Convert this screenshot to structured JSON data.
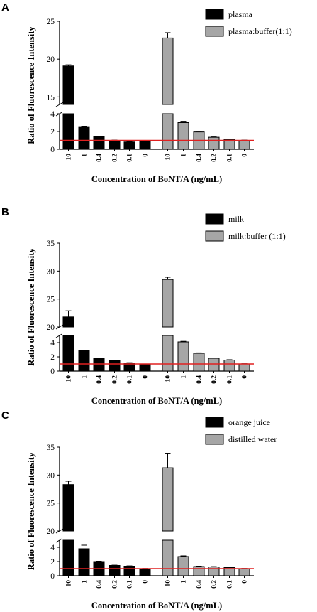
{
  "chart_data": [
    {
      "panel": "A",
      "type": "bar",
      "ylabel": "Ratio of Fluorescence Intensity",
      "xlabel": "Concentration of BoNT/A (ng/mL)",
      "categories": [
        "10",
        "1",
        "0.4",
        "0.2",
        "0.1",
        "0"
      ],
      "broken_axis": {
        "lower": [
          0,
          4
        ],
        "upper": [
          14,
          25
        ]
      },
      "lower_ticks": [
        0,
        2,
        4
      ],
      "upper_ticks": [
        15,
        20,
        25
      ],
      "threshold": 1.0,
      "threshold_color": "#e02020",
      "series": [
        {
          "name": "plasma",
          "color": "#000000",
          "values": [
            19.1,
            2.55,
            1.45,
            1.0,
            0.82,
            0.95
          ],
          "errors": [
            0.15,
            0.05,
            0.03,
            0.03,
            0.02,
            0.03
          ]
        },
        {
          "name": "plasma:buffer(1:1)",
          "color": "#a6a6a6",
          "values": [
            22.8,
            3.0,
            1.95,
            1.35,
            1.1,
            1.0
          ],
          "errors": [
            0.7,
            0.15,
            0.07,
            0.04,
            0.04,
            0.03
          ]
        }
      ]
    },
    {
      "panel": "B",
      "type": "bar",
      "ylabel": "Ratio of Fluorescence Intensity",
      "xlabel": "Concentration of BoNT/A (ng/mL)",
      "categories": [
        "10",
        "1",
        "0.4",
        "0.2",
        "0.1",
        "0"
      ],
      "broken_axis": {
        "lower": [
          0,
          5
        ],
        "upper": [
          20,
          35
        ]
      },
      "lower_ticks": [
        0,
        2,
        4
      ],
      "upper_ticks": [
        20,
        25,
        30,
        35
      ],
      "threshold": 1.0,
      "threshold_color": "#e02020",
      "series": [
        {
          "name": "milk",
          "color": "#000000",
          "values": [
            21.8,
            2.85,
            1.75,
            1.45,
            1.15,
            0.95
          ],
          "errors": [
            1.1,
            0.06,
            0.05,
            0.04,
            0.03,
            0.03
          ]
        },
        {
          "name": "milk:buffer (1:1)",
          "color": "#a6a6a6",
          "values": [
            28.5,
            4.1,
            2.5,
            1.8,
            1.55,
            1.0
          ],
          "errors": [
            0.4,
            0.08,
            0.06,
            0.05,
            0.05,
            0.03
          ]
        }
      ]
    },
    {
      "panel": "C",
      "type": "bar",
      "ylabel": "Ratio of Fluorescence Intensity",
      "xlabel": "Concentration of BoNT/A (ng/mL)",
      "categories": [
        "10",
        "1",
        "0.4",
        "0.2",
        "0.1",
        "0"
      ],
      "broken_axis": {
        "lower": [
          0,
          5
        ],
        "upper": [
          20,
          35
        ]
      },
      "lower_ticks": [
        0,
        2,
        4
      ],
      "upper_ticks": [
        20,
        25,
        30,
        35
      ],
      "threshold": 1.0,
      "threshold_color": "#e02020",
      "series": [
        {
          "name": "orange juice",
          "color": "#000000",
          "values": [
            28.3,
            3.8,
            2.0,
            1.45,
            1.35,
            1.0
          ],
          "errors": [
            0.6,
            0.5,
            0.05,
            0.04,
            0.04,
            0.03
          ]
        },
        {
          "name": "distilled water",
          "color": "#a6a6a6",
          "values": [
            31.3,
            2.7,
            1.3,
            1.25,
            1.15,
            1.0
          ],
          "errors": [
            2.5,
            0.1,
            0.05,
            0.04,
            0.04,
            0.03
          ]
        }
      ]
    }
  ]
}
